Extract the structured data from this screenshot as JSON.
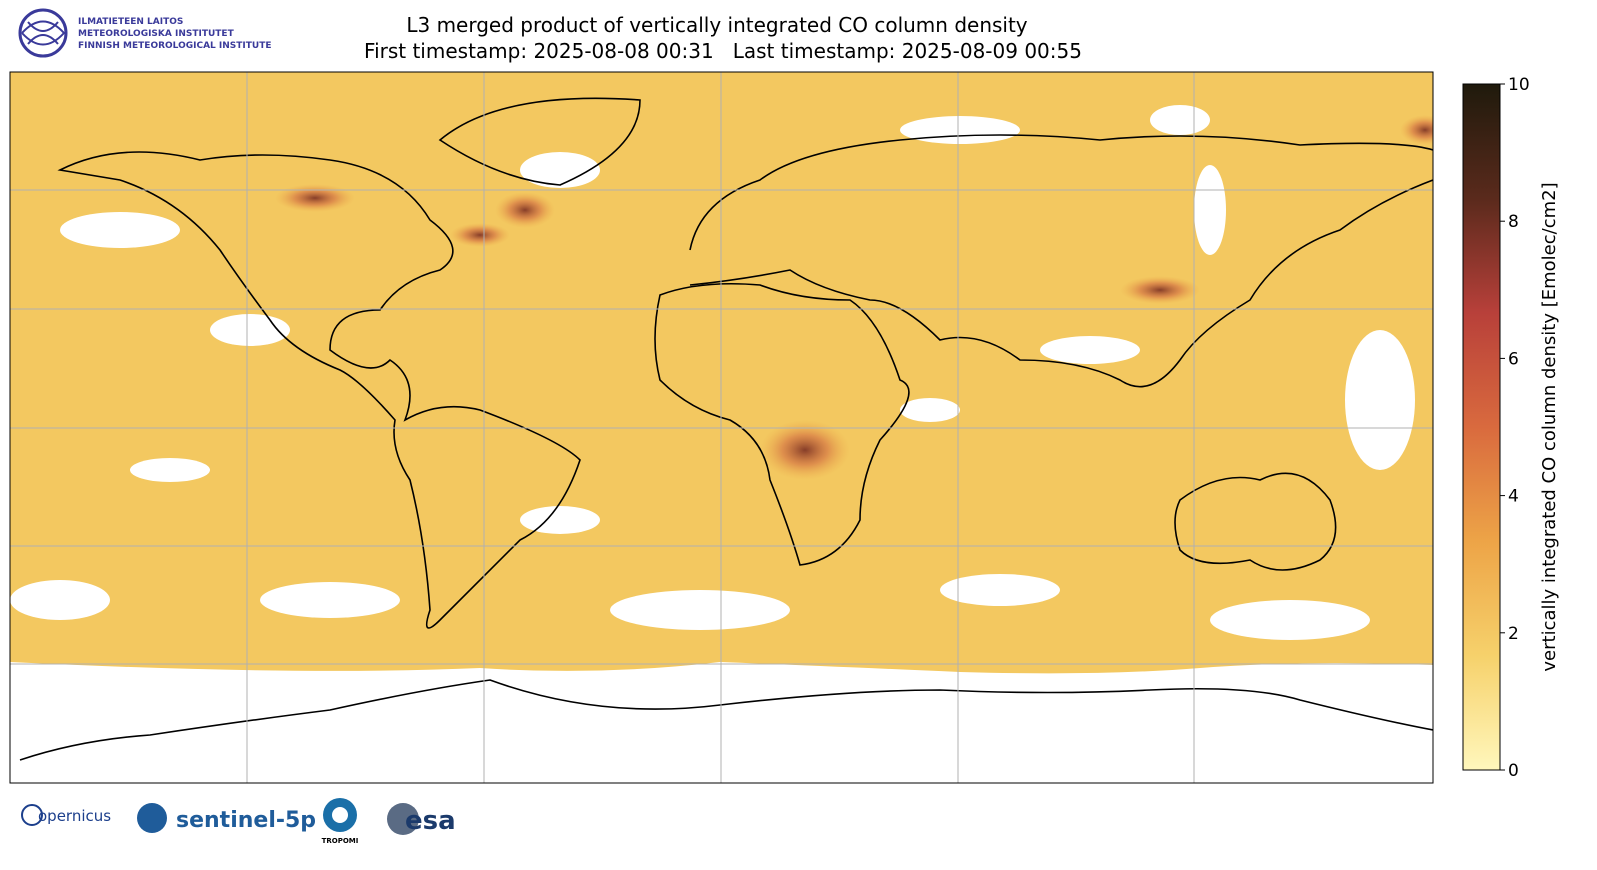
{
  "header": {
    "logo_lines": [
      "ILMATIETEEN LAITOS",
      "METEOROLOGISKA INSTITUTET",
      "FINNISH METEOROLOGICAL INSTITUTE"
    ],
    "title": "L3 merged product of vertically integrated CO column density",
    "subtitle": "First timestamp: 2025-08-08 00:31   Last timestamp: 2025-08-09 00:55"
  },
  "chart_data": {
    "type": "map",
    "colorbar": {
      "label": "vertically integrated CO column density [Emolec/cm2]",
      "lim": [
        0,
        10
      ],
      "ticks": [
        0,
        2,
        4,
        6,
        8,
        10
      ],
      "colormap": [
        "#fff7bc",
        "#f6d16b",
        "#eda447",
        "#d96a3e",
        "#b8403a",
        "#5a2a1c",
        "#1f1a0c"
      ]
    },
    "grid": true
  },
  "footer": {
    "logos": [
      "opernicus",
      "sentinel-5p",
      "TROPOMI",
      "esa"
    ]
  }
}
